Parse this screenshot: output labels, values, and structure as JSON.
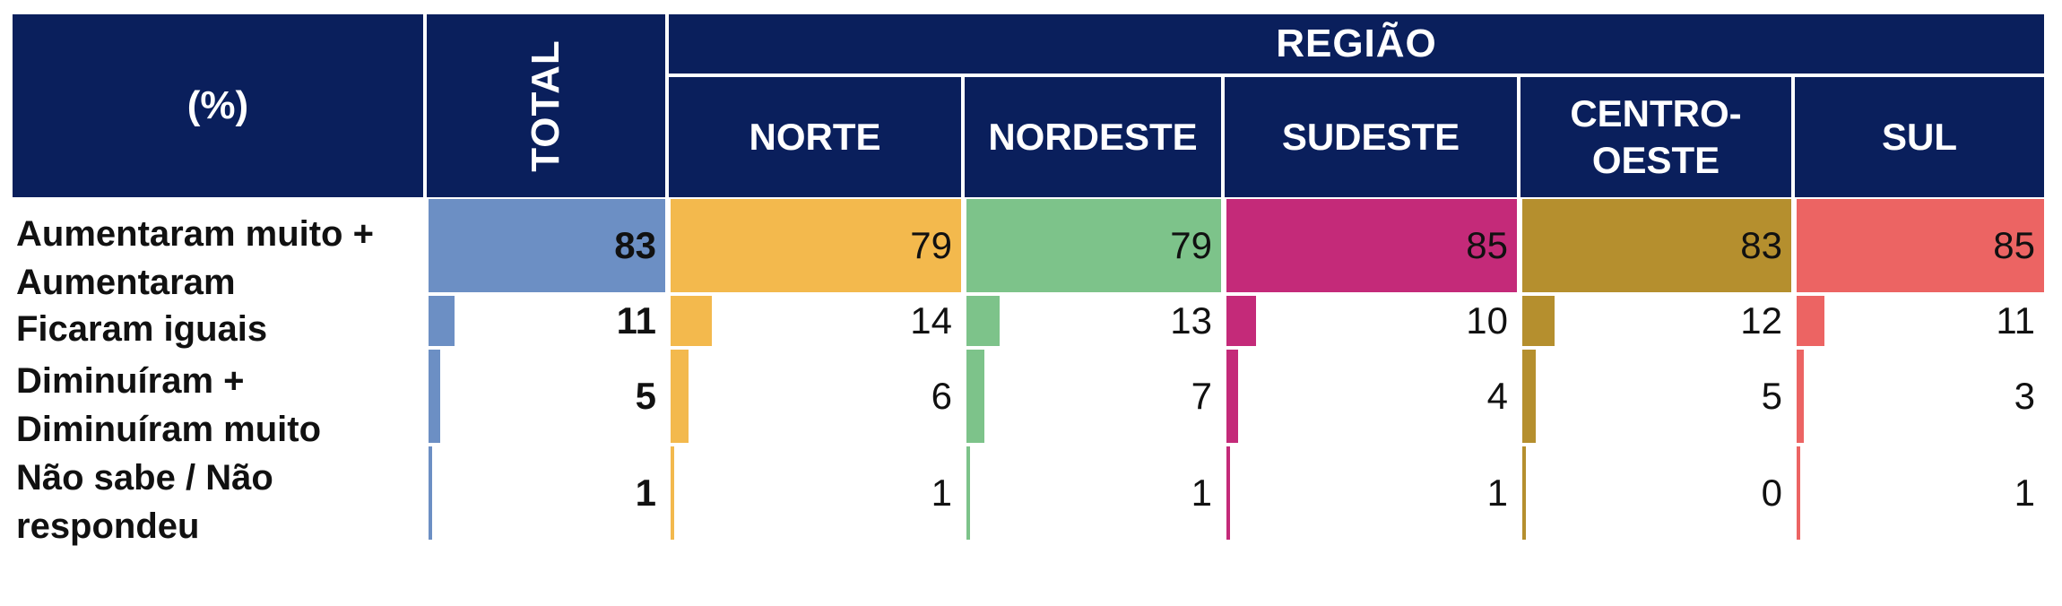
{
  "header": {
    "percent_label": "(%)",
    "total_label": "TOTAL",
    "region_label": "REGIÃO"
  },
  "chart_data": {
    "type": "bar",
    "title": "",
    "unit": "%",
    "xlim": [
      0,
      100
    ],
    "categories": [
      "Aumentaram muito + Aumentaram",
      "Ficaram iguais",
      "Diminuíram + Diminuíram muito",
      "Não sabe / Não respondeu"
    ],
    "series": [
      {
        "name": "TOTAL",
        "color": "#6c8fc4",
        "values": [
          83,
          11,
          5,
          1
        ]
      },
      {
        "name": "NORTE",
        "color": "#f3b94d",
        "values": [
          79,
          14,
          6,
          1
        ]
      },
      {
        "name": "NORDESTE",
        "color": "#7dc38a",
        "values": [
          79,
          13,
          7,
          1
        ]
      },
      {
        "name": "SUDESTE",
        "color": "#c42a79",
        "values": [
          85,
          10,
          4,
          1
        ]
      },
      {
        "name": "CENTRO-OESTE",
        "color": "#b58f2e",
        "values": [
          83,
          12,
          5,
          0
        ]
      },
      {
        "name": "SUL",
        "color": "#ec6463",
        "values": [
          85,
          11,
          3,
          1
        ]
      }
    ]
  }
}
